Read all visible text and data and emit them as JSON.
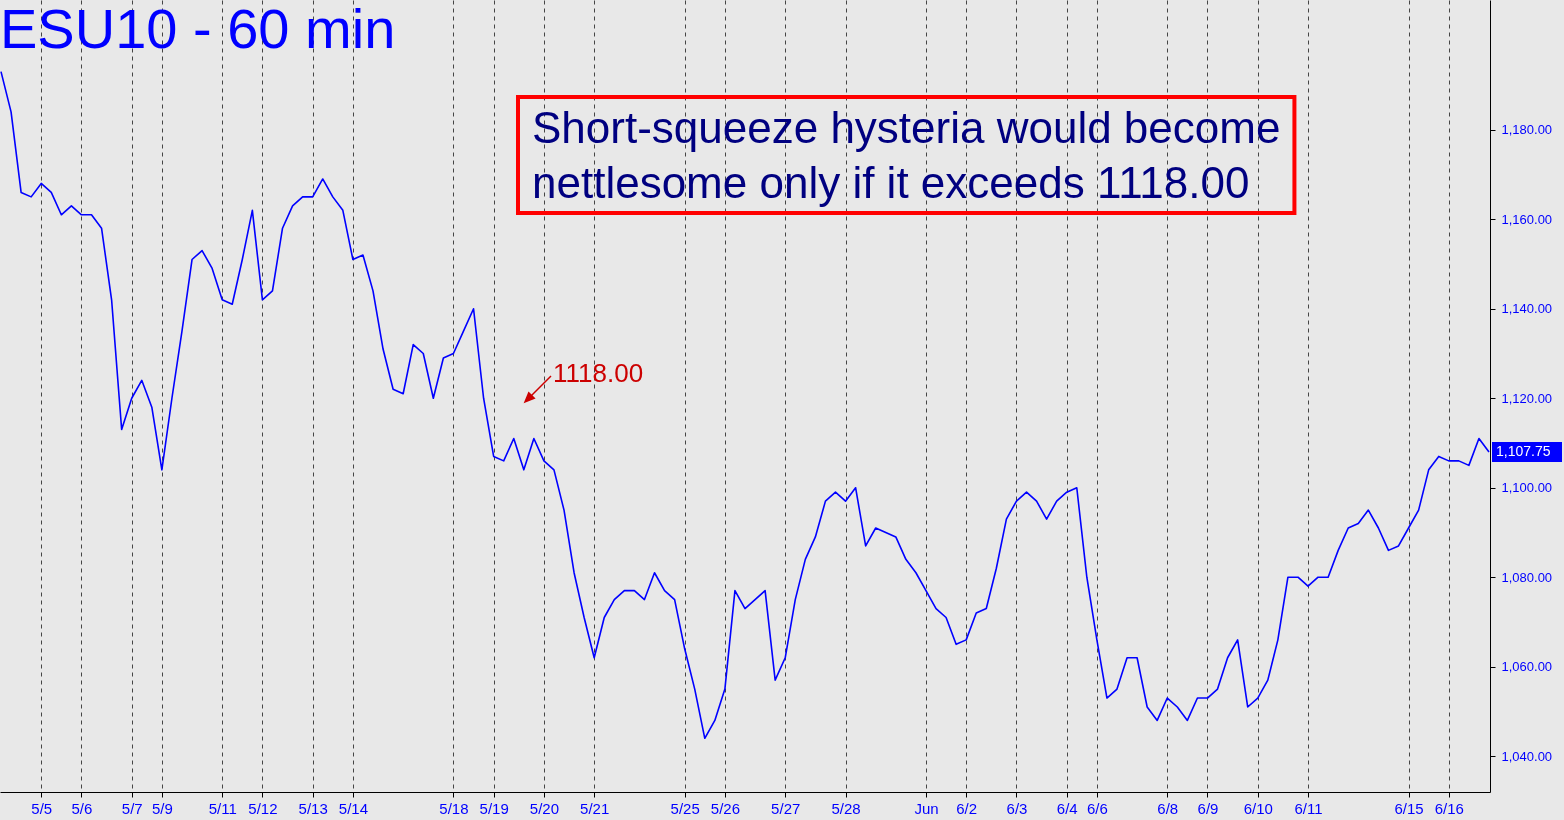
{
  "chart_data": {
    "type": "line",
    "title": "ESU10 - 60 min",
    "categories": [
      null,
      null,
      null,
      null,
      "5/5",
      null,
      null,
      null,
      "5/6",
      null,
      null,
      null,
      null,
      "5/7",
      null,
      null,
      "5/9",
      null,
      null,
      null,
      null,
      null,
      "5/11",
      null,
      null,
      null,
      "5/12",
      null,
      null,
      null,
      null,
      "5/13",
      null,
      null,
      null,
      "5/14",
      null,
      null,
      null,
      null,
      null,
      null,
      null,
      null,
      null,
      "5/18",
      null,
      null,
      null,
      "5/19",
      null,
      null,
      null,
      null,
      "5/20",
      null,
      null,
      null,
      null,
      "5/21",
      null,
      null,
      null,
      null,
      null,
      null,
      null,
      null,
      "5/25",
      null,
      null,
      null,
      "5/26",
      null,
      null,
      null,
      null,
      null,
      "5/27",
      null,
      null,
      null,
      null,
      null,
      "5/28",
      null,
      null,
      null,
      null,
      null,
      null,
      null,
      "Jun",
      null,
      null,
      null,
      "6/2",
      null,
      null,
      null,
      null,
      "6/3",
      null,
      null,
      null,
      null,
      "6/4",
      null,
      null,
      "6/6",
      null,
      null,
      null,
      null,
      null,
      null,
      "6/8",
      null,
      null,
      null,
      "6/9",
      null,
      null,
      null,
      null,
      "6/10",
      null,
      null,
      null,
      null,
      "6/11",
      null,
      null,
      null,
      null,
      null,
      null,
      null,
      null,
      null,
      "6/15",
      null,
      null,
      null,
      "6/16",
      null,
      null,
      null,
      null
    ],
    "series": [
      {
        "color": "#0000ff",
        "values": [
          1193,
          1184,
          1166,
          1165,
          1168,
          1166,
          1161,
          1163,
          1161,
          1161,
          1158,
          1142,
          1113,
          1120,
          1124,
          1118,
          1104,
          1120,
          1135,
          1151,
          1153,
          1149,
          1142,
          1141,
          1151,
          1162,
          1142,
          1144,
          1158,
          1163,
          1165,
          1165,
          1169,
          1165,
          1162,
          1151,
          1152,
          1144,
          1131,
          1122,
          1121,
          1132,
          1130,
          1120,
          1129,
          1130,
          1135,
          1140,
          1120,
          1107,
          1106,
          1111,
          1104,
          1111,
          1106,
          1104,
          1095,
          1081,
          1071,
          1062,
          1071,
          1075,
          1077,
          1077,
          1075,
          1081,
          1077,
          1075,
          1064,
          1055,
          1044,
          1048,
          1055,
          1077,
          1073,
          1075,
          1077,
          1057,
          1062,
          1075,
          1084,
          1089,
          1097,
          1099,
          1097,
          1100,
          1087,
          1091,
          1090,
          1089,
          1084,
          1081,
          1077,
          1073,
          1071,
          1065,
          1066,
          1072,
          1073,
          1082,
          1093,
          1097,
          1099,
          1097,
          1093,
          1097,
          1099,
          1100,
          1080,
          1066,
          1053,
          1055,
          1062,
          1062,
          1051,
          1048,
          1053,
          1051,
          1048,
          1053,
          1053,
          1055,
          1062,
          1066,
          1051,
          1053,
          1057,
          1066,
          1080,
          1080,
          1078,
          1080,
          1080,
          1086,
          1091,
          1092,
          1095,
          1091,
          1086,
          1087,
          1091,
          1095,
          1104,
          1107,
          1106,
          1106,
          1105,
          1111,
          1108
        ]
      }
    ],
    "ylim": [
      1032,
      1209
    ],
    "yticks": [
      {
        "value": 1040,
        "label": "1,040.00"
      },
      {
        "value": 1060,
        "label": "1,060.00"
      },
      {
        "value": 1080,
        "label": "1,080.00"
      },
      {
        "value": 1100,
        "label": "1,100.00"
      },
      {
        "value": 1120,
        "label": "1,120.00"
      },
      {
        "value": 1140,
        "label": "1,140.00"
      },
      {
        "value": 1160,
        "label": "1,160.00"
      },
      {
        "value": 1180,
        "label": "1,180.00"
      }
    ],
    "grid": "x",
    "annotations": [
      "Short-squeeze hysteria would become nettlesome only if it exceeds 1118.00",
      "1118.00",
      "1,107.75"
    ]
  }
}
